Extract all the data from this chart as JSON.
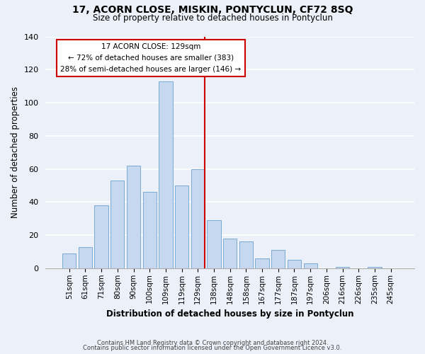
{
  "title": "17, ACORN CLOSE, MISKIN, PONTYCLUN, CF72 8SQ",
  "subtitle": "Size of property relative to detached houses in Pontyclun",
  "xlabel": "Distribution of detached houses by size in Pontyclun",
  "ylabel": "Number of detached properties",
  "bar_labels": [
    "51sqm",
    "61sqm",
    "71sqm",
    "80sqm",
    "90sqm",
    "100sqm",
    "109sqm",
    "119sqm",
    "129sqm",
    "138sqm",
    "148sqm",
    "158sqm",
    "167sqm",
    "177sqm",
    "187sqm",
    "197sqm",
    "206sqm",
    "216sqm",
    "226sqm",
    "235sqm",
    "245sqm"
  ],
  "bar_heights": [
    9,
    13,
    38,
    53,
    62,
    46,
    113,
    50,
    60,
    29,
    18,
    16,
    6,
    11,
    5,
    3,
    0,
    1,
    0,
    1,
    0
  ],
  "bar_color": "#c5d8f0",
  "bar_edge_color": "#7aaad4",
  "highlight_line_color": "#cc0000",
  "box_text_line1": "17 ACORN CLOSE: 129sqm",
  "box_text_line2": "← 72% of detached houses are smaller (383)",
  "box_text_line3": "28% of semi-detached houses are larger (146) →",
  "box_color": "#ffffff",
  "box_edge_color": "#cc0000",
  "ylim": [
    0,
    140
  ],
  "yticks": [
    0,
    20,
    40,
    60,
    80,
    100,
    120,
    140
  ],
  "footer1": "Contains HM Land Registry data © Crown copyright and database right 2024.",
  "footer2": "Contains public sector information licensed under the Open Government Licence v3.0.",
  "bg_color": "#ecf0f8"
}
